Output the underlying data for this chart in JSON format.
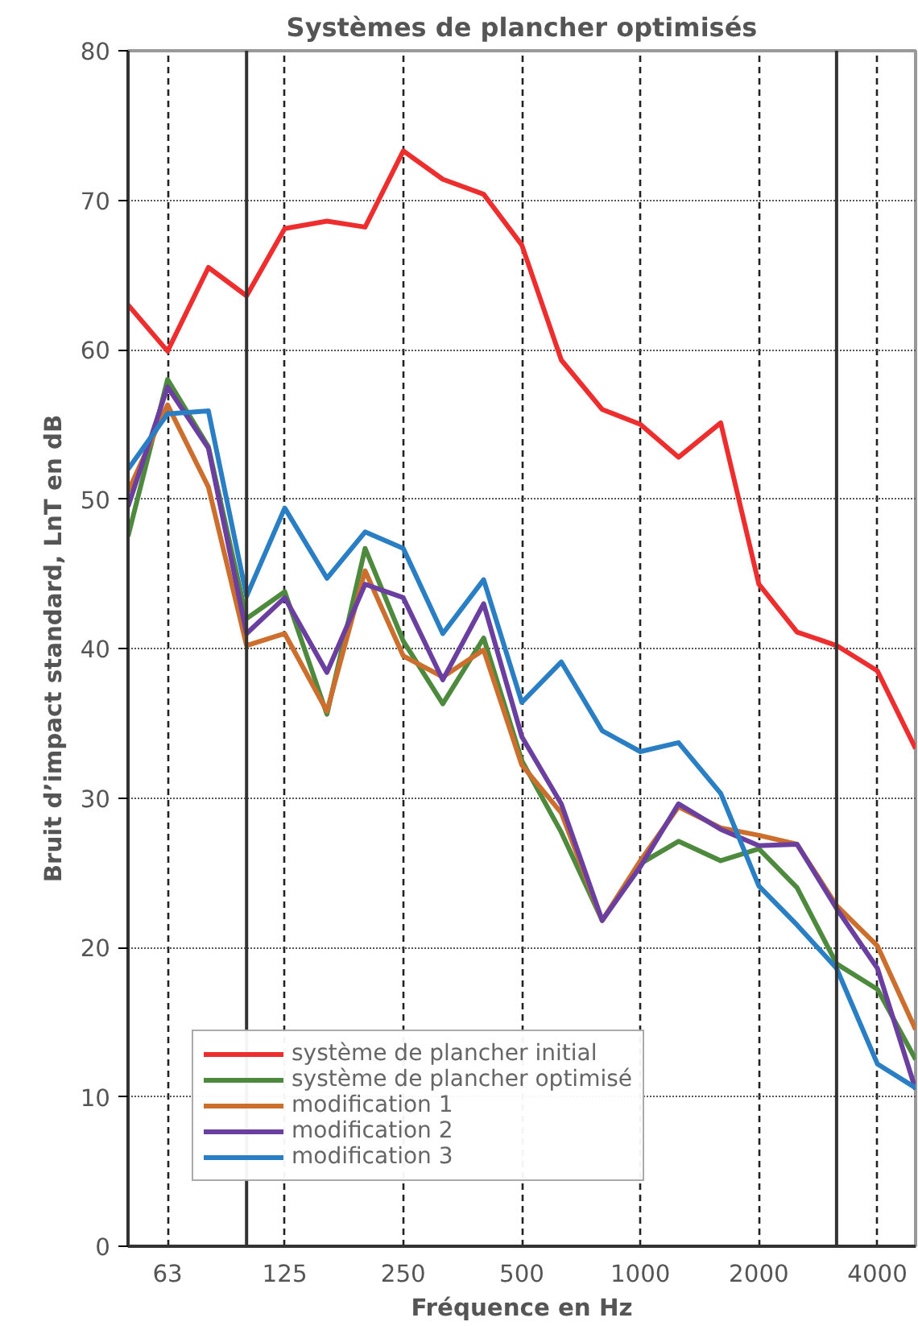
{
  "chart_data": {
    "type": "line",
    "title": "Systèmes de plancher optimisés",
    "xlabel": "Fréquence en Hz",
    "ylabel": "Bruit d’impact standard, LnT en dB",
    "x": [
      50,
      63,
      80,
      100,
      125,
      160,
      200,
      250,
      315,
      400,
      500,
      630,
      800,
      1000,
      1250,
      1600,
      2000,
      2500,
      3150,
      4000,
      5000
    ],
    "log": "x",
    "xlim": [
      50,
      5000
    ],
    "xticks": [
      63,
      125,
      250,
      500,
      1000,
      2000,
      4000
    ],
    "ylim": [
      0,
      80
    ],
    "yticks": [
      0,
      10,
      20,
      30,
      40,
      50,
      60,
      70,
      80
    ],
    "grid": true,
    "legend": "bottom left",
    "marker": "none",
    "line_style": "solid",
    "ref_lines": [
      {
        "axis": "x",
        "value": 100,
        "color": "#333333",
        "line_style": "solid"
      },
      {
        "axis": "x",
        "value": 3150,
        "color": "#333333",
        "line_style": "solid"
      }
    ],
    "series": [
      {
        "name": "système de plancher initial",
        "color": "#ee2e2e",
        "values": [
          63.0,
          59.9,
          65.5,
          63.6,
          68.1,
          68.6,
          68.2,
          73.3,
          71.4,
          70.4,
          67.0,
          59.3,
          56.0,
          55.0,
          52.8,
          55.1,
          44.3,
          41.1,
          40.2,
          38.5,
          33.3
        ]
      },
      {
        "name": "système de plancher optimisé",
        "color": "#4e8a3e",
        "values": [
          47.5,
          58.0,
          53.5,
          42.0,
          43.8,
          35.6,
          46.7,
          40.5,
          36.3,
          40.7,
          32.5,
          27.7,
          21.8,
          25.6,
          27.1,
          25.8,
          26.6,
          24.0,
          18.9,
          17.2,
          12.5
        ]
      },
      {
        "name": "modification 1",
        "color": "#cc6f2e",
        "values": [
          50.5,
          56.3,
          50.8,
          40.2,
          41.0,
          35.8,
          45.2,
          39.5,
          38.1,
          39.9,
          32.2,
          29.0,
          21.8,
          25.8,
          29.4,
          28.0,
          27.5,
          26.9,
          22.8,
          20.1,
          14.5
        ]
      },
      {
        "name": "modification 2",
        "color": "#6a3fa0",
        "values": [
          49.5,
          57.5,
          53.4,
          41.0,
          43.4,
          38.4,
          44.3,
          43.4,
          37.9,
          43.0,
          34.1,
          29.6,
          21.8,
          25.4,
          29.6,
          27.9,
          26.8,
          26.9,
          22.6,
          18.6,
          10.5
        ]
      },
      {
        "name": "modification 3",
        "color": "#2a7fc4",
        "values": [
          52.0,
          55.7,
          55.9,
          43.5,
          49.4,
          44.7,
          47.8,
          46.7,
          41.0,
          44.6,
          36.4,
          39.1,
          34.5,
          33.1,
          33.7,
          30.3,
          24.1,
          21.5,
          18.6,
          12.2,
          10.6
        ]
      }
    ]
  }
}
